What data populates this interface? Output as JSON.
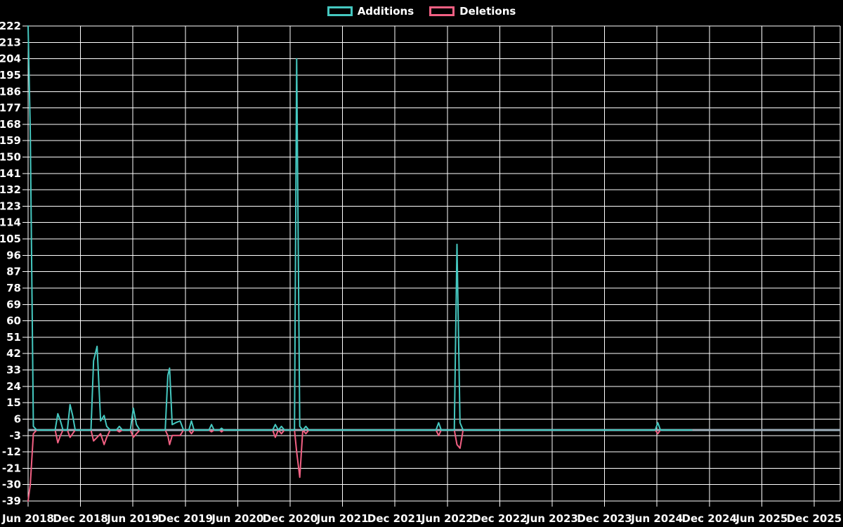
{
  "legend": {
    "additions_label": "Additions",
    "deletions_label": "Deletions"
  },
  "colors": {
    "background": "#000000",
    "additions": "#45c8c0",
    "deletions": "#f26083",
    "grid": "#ffffff",
    "zero_line": "#9eafbb",
    "text": "#ffffff"
  },
  "chart_data": {
    "type": "line",
    "title": "",
    "xlabel": "",
    "ylabel": "",
    "grid": true,
    "legend_position": "top-center",
    "x_unit": "months since Jun 2018",
    "x_tick_months": [
      0,
      6,
      12,
      18,
      24,
      30,
      36,
      42,
      48,
      54,
      60,
      66,
      72,
      78,
      84,
      90
    ],
    "x_tick_labels": [
      "Jun 2018",
      "Dec 2018",
      "Jun 2019",
      "Dec 2019",
      "Jun 2020",
      "Dec 2020",
      "Jun 2021",
      "Dec 2021",
      "Jun 2022",
      "Dec 2022",
      "Jun 2023",
      "Dec 2023",
      "Jun 2024",
      "Dec 2024",
      "Jun 2025",
      "Dec 2025"
    ],
    "xlim_months": [
      0,
      93
    ],
    "ylim": [
      -39,
      222
    ],
    "y_tick_step": 9,
    "zero_line": true,
    "x": [
      0.0,
      0.25,
      0.6,
      1.0,
      3.1,
      3.4,
      3.7,
      4.0,
      4.5,
      4.8,
      5.1,
      5.4,
      7.2,
      7.5,
      7.9,
      8.3,
      8.7,
      9.0,
      9.4,
      10.1,
      10.45,
      10.8,
      11.7,
      12.05,
      12.4,
      12.8,
      15.7,
      16.0,
      16.2,
      16.5,
      16.9,
      17.4,
      17.8,
      18.4,
      18.7,
      19.0,
      20.7,
      21.0,
      21.3,
      21.9,
      22.15,
      22.4,
      28.0,
      28.3,
      28.65,
      29.0,
      29.35,
      30.5,
      30.75,
      31.1,
      31.45,
      31.8,
      32.15,
      46.7,
      47.0,
      47.3,
      48.8,
      49.1,
      49.45,
      49.8,
      71.8,
      72.1,
      72.4,
      76.0
    ],
    "series": [
      {
        "name": "Additions",
        "color": "#45c8c0",
        "values": [
          222,
          164,
          2,
          0,
          0,
          9,
          5,
          0,
          0,
          14,
          8,
          0,
          0,
          38,
          46,
          5,
          8,
          2,
          0,
          0,
          2,
          0,
          0,
          12,
          3,
          0,
          0,
          30,
          34,
          3,
          4,
          5,
          0,
          0,
          5,
          0,
          0,
          3,
          0,
          0,
          1,
          0,
          0,
          3,
          0,
          2,
          0,
          0,
          204,
          2,
          0,
          2,
          0,
          0,
          4,
          0,
          0,
          102,
          4,
          0,
          0,
          4,
          0,
          0
        ]
      },
      {
        "name": "Deletions",
        "color": "#f26083",
        "values": [
          -39,
          -30,
          -2,
          0,
          0,
          -7,
          -3,
          0,
          0,
          -4,
          -2,
          0,
          0,
          -6,
          -4,
          -2,
          -8,
          -4,
          0,
          0,
          -1,
          0,
          0,
          -4,
          -2,
          0,
          0,
          -3,
          -8,
          -3,
          -3,
          -3,
          0,
          0,
          -2,
          0,
          0,
          -1,
          0,
          0,
          -1,
          0,
          0,
          -4,
          0,
          -2,
          0,
          0,
          -12,
          -26,
          0,
          -2,
          0,
          0,
          -3,
          0,
          0,
          -8,
          -10,
          0,
          0,
          -2,
          0,
          0
        ]
      }
    ]
  }
}
